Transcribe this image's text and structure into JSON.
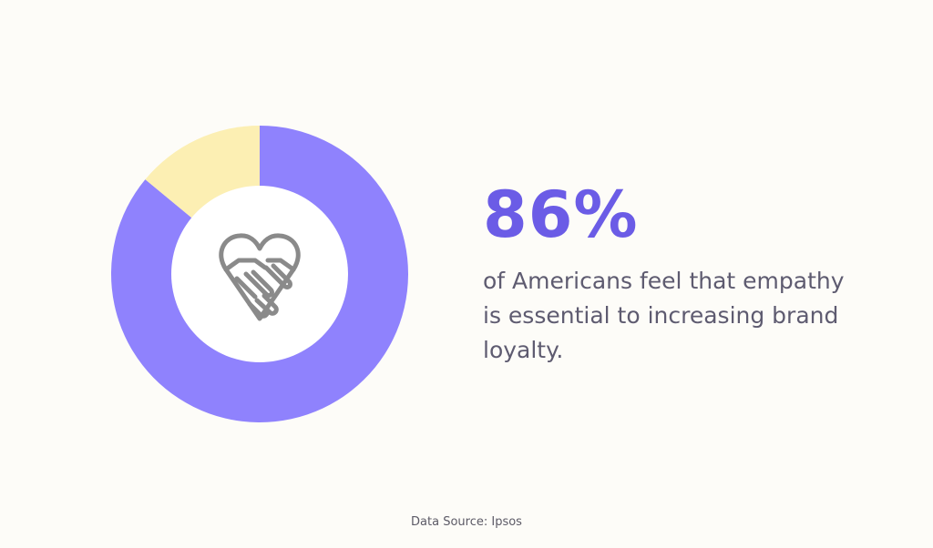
{
  "chart_data": {
    "type": "pie",
    "donut": true,
    "series": [
      {
        "value": 86,
        "color": "#8f82fd"
      },
      {
        "value": 14,
        "color": "#fcefb3"
      }
    ],
    "center_icon": "handshake-heart-icon"
  },
  "stat": {
    "value": "86%",
    "caption": "of Americans feel that empathy is essential to increasing brand loyalty.",
    "color": "#6b5ce6"
  },
  "source": "Data Source: Ipsos",
  "colors": {
    "background": "#fdfcf8",
    "donut_hole": "#ffffff",
    "icon_stroke": "#8a8a8a"
  }
}
